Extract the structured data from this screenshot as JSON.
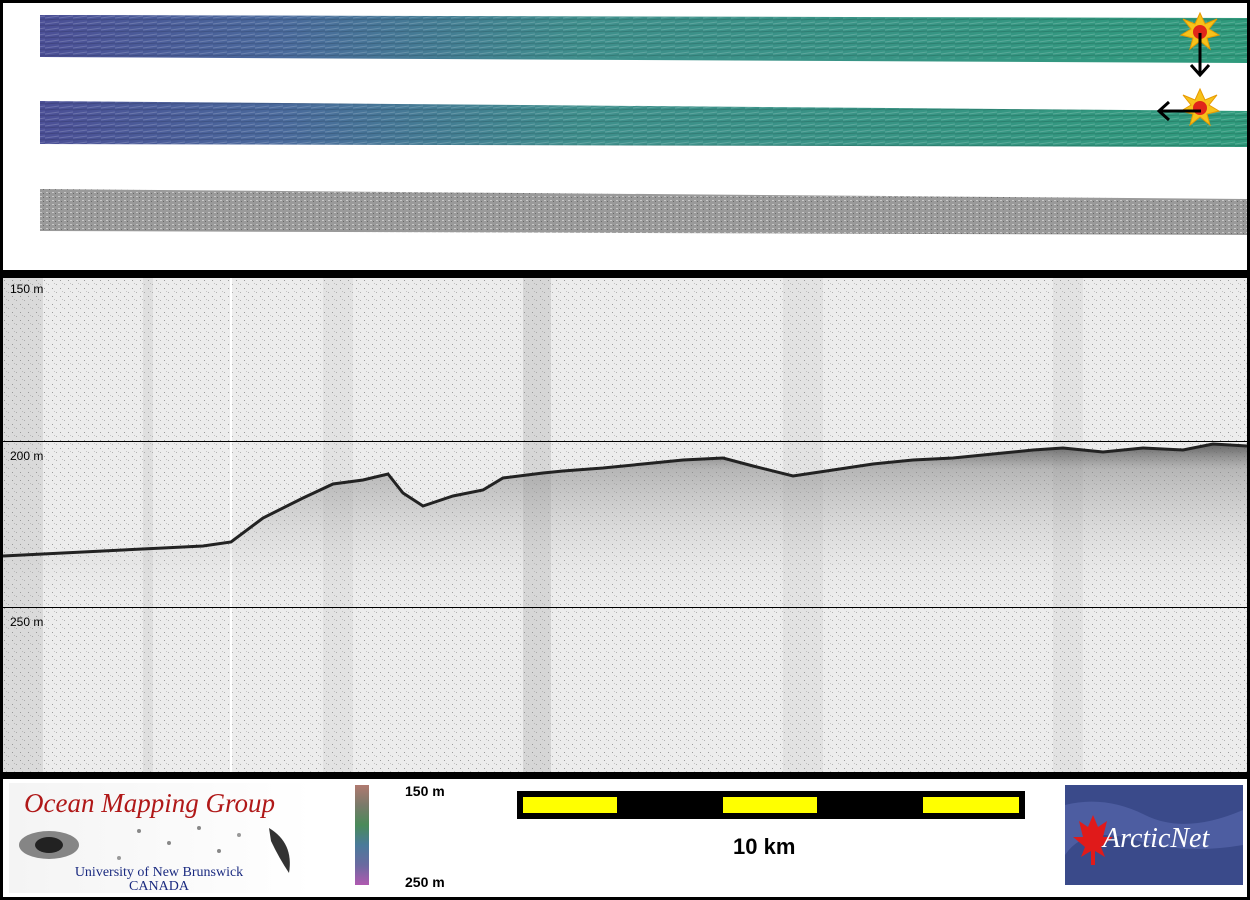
{
  "depth_labels": {
    "top": "150 m",
    "middle": "200 m",
    "bottom": "250 m"
  },
  "legend": {
    "top_label": "150 m",
    "bottom_label": "250 m"
  },
  "scale_bar": {
    "label": "10 km"
  },
  "logo_omg": {
    "title": "Ocean Mapping Group",
    "line1": "University of New Brunswick",
    "line2": "CANADA"
  },
  "logo_arcticnet": {
    "text": "ArcticNet"
  },
  "colors": {
    "frame": "#000000",
    "scale_yellow": "#ffff00",
    "omg_red": "#b01818",
    "omg_blue": "#1a2a80",
    "arctic_bg": "#3a4a8a"
  },
  "icons": [
    "explosion-marker-icon",
    "arrow-down-icon",
    "arrow-left-icon",
    "maple-leaf-icon"
  ]
}
